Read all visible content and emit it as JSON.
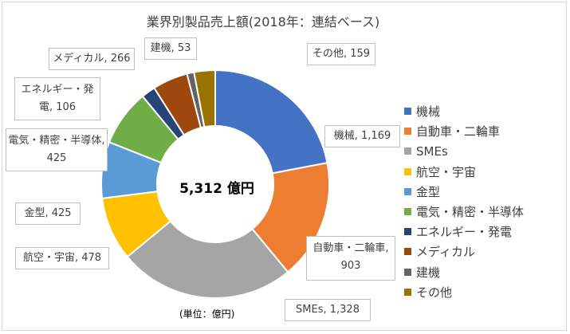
{
  "chart_data": {
    "type": "pie",
    "variant": "donut",
    "title": "業界別製品売上額(2018年：連結ベース)",
    "center_label": "5,312 億円",
    "unit_note": "(単位：億円)",
    "legend_position": "right",
    "slices": [
      {
        "name": "機械",
        "value": 1169,
        "value_label": "1,169",
        "color": "#4472c4"
      },
      {
        "name": "自動車・二輪車",
        "value": 903,
        "value_label": "903",
        "color": "#ed7d31"
      },
      {
        "name": "SMEs",
        "value": 1328,
        "value_label": "1,328",
        "color": "#a5a5a5"
      },
      {
        "name": "航空・宇宙",
        "value": 478,
        "value_label": "478",
        "color": "#ffc000"
      },
      {
        "name": "金型",
        "value": 425,
        "value_label": "425",
        "color": "#5b9bd5"
      },
      {
        "name": "電気・精密・半導体",
        "value": 425,
        "value_label": "425",
        "color": "#70ad47"
      },
      {
        "name": "エネルギー・発電",
        "value": 106,
        "value_label": "106",
        "color": "#264478"
      },
      {
        "name": "メディカル",
        "value": 266,
        "value_label": "266",
        "color": "#9e480e"
      },
      {
        "name": "建機",
        "value": 53,
        "value_label": "53",
        "color": "#636363"
      },
      {
        "name": "その他",
        "value": 159,
        "value_label": "159",
        "color": "#997300"
      }
    ]
  }
}
